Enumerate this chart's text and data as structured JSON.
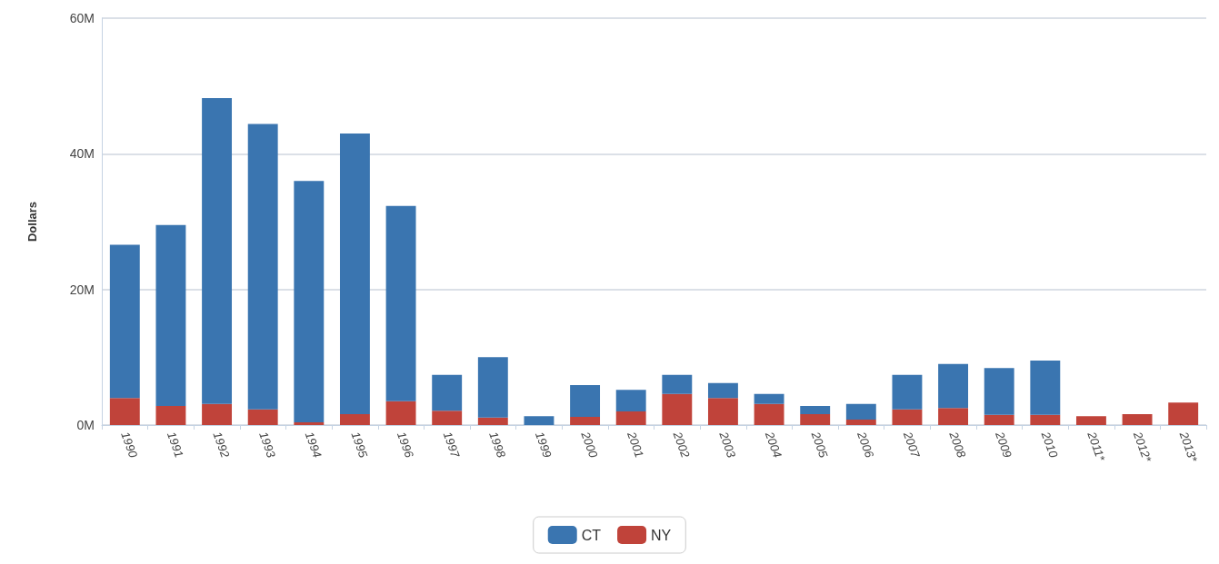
{
  "chart_data": {
    "type": "bar",
    "ylabel": "Dollars",
    "stacked": true,
    "categories": [
      "1990",
      "1991",
      "1992",
      "1993",
      "1994",
      "1995",
      "1996",
      "1997",
      "1998",
      "1999",
      "2000",
      "2001",
      "2002",
      "2003",
      "2004",
      "2005",
      "2006",
      "2007",
      "2008",
      "2009",
      "2010",
      "2011*",
      "2012*",
      "2013*"
    ],
    "series": [
      {
        "name": "NY",
        "color": "#c0433a",
        "values": [
          4.0,
          2.8,
          3.1,
          2.3,
          0.4,
          1.6,
          3.5,
          2.1,
          1.1,
          0,
          1.2,
          2.0,
          4.6,
          4.0,
          3.1,
          1.6,
          0.8,
          2.3,
          2.5,
          1.5,
          1.5,
          1.3,
          1.6,
          3.3
        ]
      },
      {
        "name": "CT",
        "color": "#3a75b0",
        "values": [
          22.6,
          26.7,
          45.1,
          42.1,
          35.6,
          41.4,
          28.8,
          5.3,
          8.9,
          1.3,
          4.7,
          3.2,
          2.8,
          2.2,
          1.5,
          1.2,
          2.3,
          5.1,
          6.5,
          6.9,
          8.0,
          null,
          null,
          null
        ]
      }
    ],
    "ylim": [
      0,
      60
    ],
    "yticks": [
      {
        "value": 0,
        "label": "0M"
      },
      {
        "value": 20,
        "label": "20M"
      },
      {
        "value": 40,
        "label": "40M"
      },
      {
        "value": 60,
        "label": "60M"
      }
    ],
    "grid": "y",
    "legend": "bottom"
  }
}
